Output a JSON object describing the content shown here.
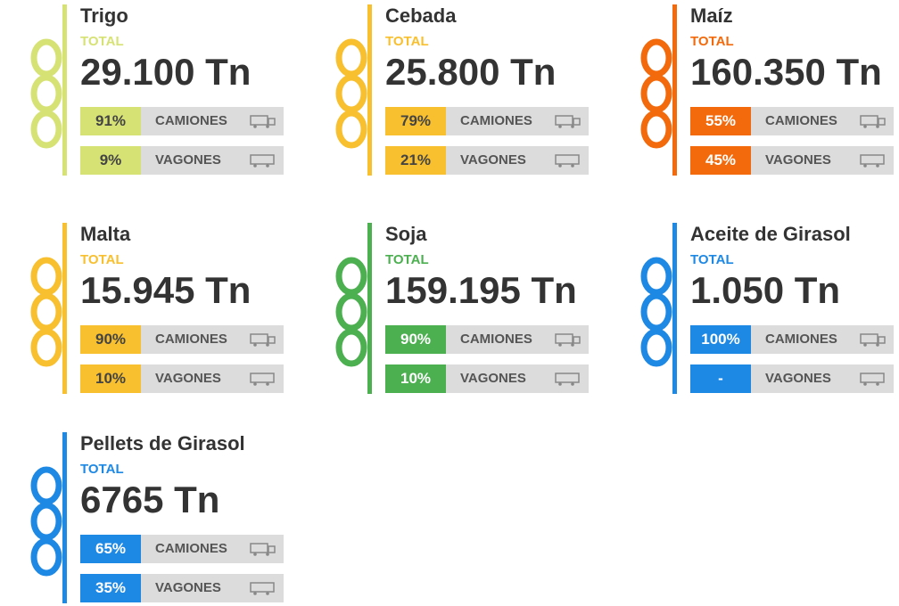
{
  "cards": [
    {
      "title": "Trigo",
      "total_label": "TOTAL",
      "total": "29.100 Tn",
      "color": "#d6e274",
      "rows": [
        {
          "pct": "91%",
          "label": "CAMIONES"
        },
        {
          "pct": "9%",
          "label": "VAGONES"
        }
      ]
    },
    {
      "title": "Cebada",
      "total_label": "TOTAL",
      "total": "25.800 Tn",
      "color": "#f8bf2e",
      "rows": [
        {
          "pct": "79%",
          "label": "CAMIONES"
        },
        {
          "pct": "21%",
          "label": "VAGONES"
        }
      ]
    },
    {
      "title": "Maíz",
      "total_label": "TOTAL",
      "total": "160.350 Tn",
      "color": "#f26a0c",
      "rows": [
        {
          "pct": "55%",
          "label": "CAMIONES"
        },
        {
          "pct": "45%",
          "label": "VAGONES"
        }
      ]
    },
    {
      "title": "Malta",
      "total_label": "TOTAL",
      "total": "15.945 Tn",
      "color": "#f8bf2e",
      "rows": [
        {
          "pct": "90%",
          "label": "CAMIONES"
        },
        {
          "pct": "10%",
          "label": "VAGONES"
        }
      ]
    },
    {
      "title": "Soja",
      "total_label": "TOTAL",
      "total": "159.195 Tn",
      "color": "#4caf50",
      "rows": [
        {
          "pct": "90%",
          "label": "CAMIONES"
        },
        {
          "pct": "10%",
          "label": "VAGONES"
        }
      ]
    },
    {
      "title": "Aceite de Girasol",
      "total_label": "TOTAL",
      "total": "1.050 Tn",
      "color": "#1e88e5",
      "rows": [
        {
          "pct": "100%",
          "label": "CAMIONES"
        },
        {
          "pct": "-",
          "label": "VAGONES"
        }
      ]
    },
    {
      "title": "Pellets de Girasol",
      "total_label": "TOTAL",
      "total": "6765 Tn",
      "color": "#1e88e5",
      "rows": [
        {
          "pct": "65%",
          "label": "CAMIONES"
        },
        {
          "pct": "35%",
          "label": "VAGONES"
        }
      ]
    }
  ]
}
